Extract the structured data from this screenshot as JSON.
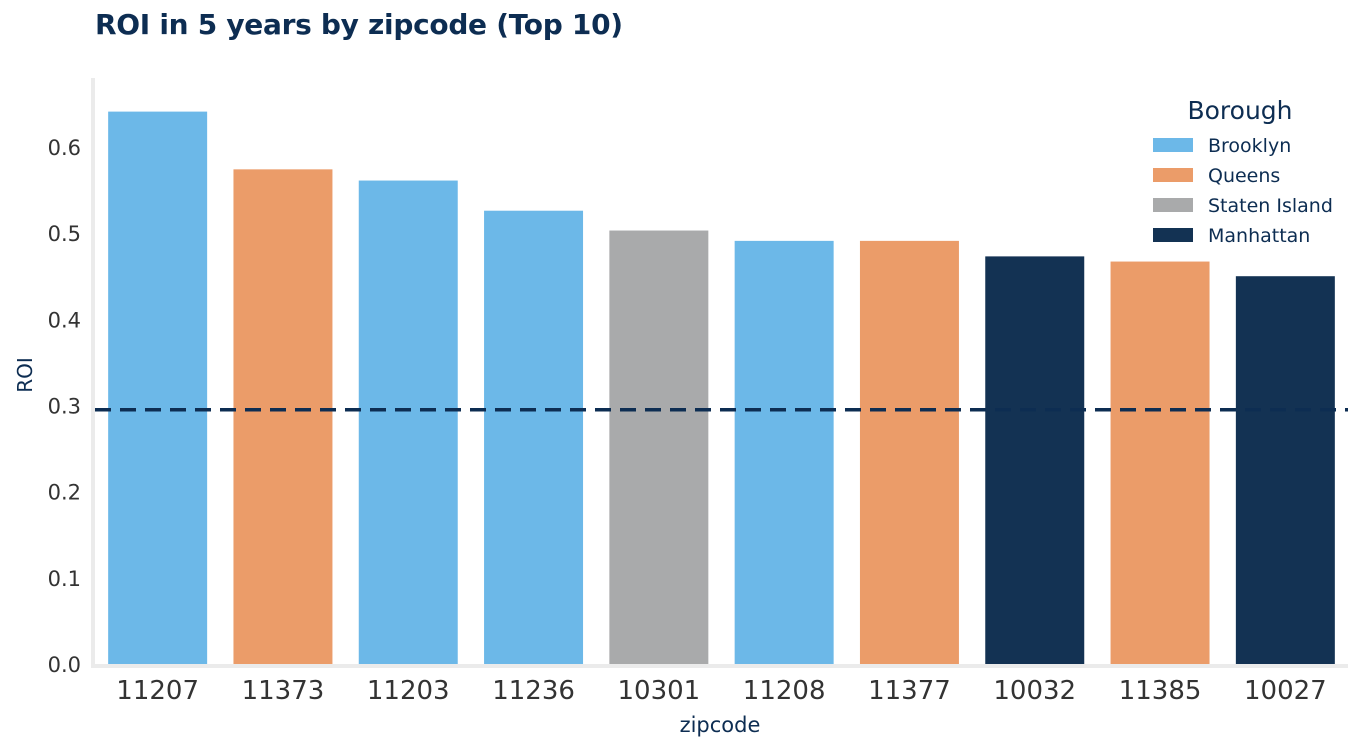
{
  "chart_data": {
    "type": "bar",
    "title": "ROI in 5 years by zipcode (Top 10)",
    "xlabel": "zipcode",
    "ylabel": "ROI",
    "ylim": [
      0,
      0.68
    ],
    "yticks": [
      "0.0",
      "0.1",
      "0.2",
      "0.3",
      "0.4",
      "0.5",
      "0.6"
    ],
    "categories": [
      "11207",
      "11373",
      "11203",
      "11236",
      "10301",
      "11208",
      "11377",
      "10032",
      "11385",
      "10027"
    ],
    "values": [
      0.641,
      0.574,
      0.561,
      0.526,
      0.503,
      0.491,
      0.491,
      0.473,
      0.467,
      0.45
    ],
    "boroughs": [
      "Brooklyn",
      "Queens",
      "Brooklyn",
      "Brooklyn",
      "Staten Island",
      "Brooklyn",
      "Queens",
      "Manhattan",
      "Queens",
      "Manhattan"
    ],
    "reference_line": 0.295,
    "grid": false,
    "legend": {
      "title": "Borough",
      "position": "top-right",
      "entries": [
        {
          "name": "Brooklyn",
          "color": "#6cb8e8"
        },
        {
          "name": "Queens",
          "color": "#eb9c69"
        },
        {
          "name": "Staten Island",
          "color": "#a9aaab"
        },
        {
          "name": "Manhattan",
          "color": "#133253"
        }
      ]
    },
    "colors": {
      "reference_line": "#0d2d52",
      "axis": "#ebebeb",
      "title": "#0d2d52"
    }
  }
}
